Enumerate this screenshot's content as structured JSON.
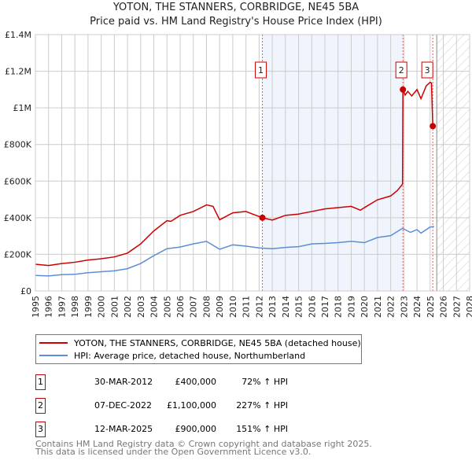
{
  "chart_data": {
    "type": "line",
    "title": "YOTON, THE STANNERS, CORBRIDGE, NE45 5BA",
    "subtitle": "Price paid vs. HM Land Registry's House Price Index (HPI)",
    "xlim": [
      1995,
      2028
    ],
    "ylim": [
      0,
      1400000
    ],
    "yticks": [
      0,
      200000,
      400000,
      600000,
      800000,
      1000000,
      1200000,
      1400000
    ],
    "ytick_labels": [
      "£0",
      "£200K",
      "£400K",
      "£600K",
      "£800K",
      "£1M",
      "£1.2M",
      "£1.4M"
    ],
    "xticks": [
      "1995",
      "1996",
      "1997",
      "1998",
      "1999",
      "2000",
      "2001",
      "2002",
      "2003",
      "2004",
      "2005",
      "2006",
      "2007",
      "2008",
      "2009",
      "2010",
      "2011",
      "2012",
      "2013",
      "2014",
      "2015",
      "2016",
      "2017",
      "2018",
      "2019",
      "2020",
      "2021",
      "2022",
      "2023",
      "2024",
      "2025",
      "2026",
      "2027",
      "2028"
    ],
    "grid": true,
    "shaded_range": [
      2012.25,
      2022.93
    ],
    "forecast_from": 2025.5,
    "colors": {
      "property": "#cc0000",
      "hpi": "#5b8fd4",
      "shade": "#f0f4fc"
    },
    "series": [
      {
        "name": "YOTON, THE STANNERS, CORBRIDGE, NE45 5BA (detached house)",
        "x": [
          1995,
          1996,
          1997,
          1998,
          1999,
          2000,
          2001,
          2002,
          2003,
          2004,
          2005,
          2005.3,
          2006,
          2007,
          2008,
          2008.5,
          2009,
          2010,
          2011,
          2011.5,
          2012.25,
          2013,
          2014,
          2015,
          2016,
          2017,
          2018,
          2019,
          2019.7,
          2020,
          2021,
          2022,
          2022.5,
          2022.9,
          2022.93,
          2023.1,
          2023.3,
          2023.6,
          2024,
          2024.3,
          2024.7,
          2025,
          2025.1,
          2025.2,
          2025.3
        ],
        "y": [
          146000,
          139000,
          150000,
          157000,
          169000,
          176000,
          186000,
          207000,
          257000,
          328000,
          384000,
          380000,
          413000,
          434000,
          470000,
          462000,
          389000,
          427000,
          434000,
          420000,
          400000,
          387000,
          413000,
          420000,
          434000,
          448000,
          455000,
          462000,
          441000,
          455000,
          498000,
          519000,
          548000,
          583000,
          1100000,
          1070000,
          1090000,
          1065000,
          1100000,
          1050000,
          1120000,
          1140000,
          1135000,
          900000,
          890000
        ]
      },
      {
        "name": "HPI: Average price, detached house, Northumberland",
        "x": [
          1995,
          1996,
          1997,
          1998,
          1999,
          2000,
          2001,
          2002,
          2003,
          2004,
          2005,
          2006,
          2007,
          2008,
          2009,
          2010,
          2011,
          2012,
          2013,
          2014,
          2015,
          2016,
          2017,
          2018,
          2019,
          2020,
          2021,
          2022,
          2022.9,
          2023.5,
          2024,
          2024.3,
          2025,
          2025.3
        ],
        "y": [
          85000,
          82000,
          89000,
          91000,
          100000,
          105000,
          110000,
          122000,
          150000,
          193000,
          231000,
          240000,
          257000,
          271000,
          228000,
          252000,
          245000,
          235000,
          231000,
          238000,
          242000,
          257000,
          260000,
          264000,
          271000,
          264000,
          292000,
          302000,
          342000,
          320000,
          335000,
          316000,
          349000,
          352000
        ]
      }
    ],
    "sales": [
      {
        "label": "1",
        "x": 2012.25,
        "y": 400000,
        "date": "30-MAR-2012",
        "price": "£400,000",
        "hpi": "72% ↑ HPI"
      },
      {
        "label": "2",
        "x": 2022.93,
        "y": 1100000,
        "date": "07-DEC-2022",
        "price": "£1,100,000",
        "hpi": "227% ↑ HPI"
      },
      {
        "label": "3",
        "x": 2025.2,
        "y": 900000,
        "date": "12-MAR-2025",
        "price": "£900,000",
        "hpi": "151% ↑ HPI"
      }
    ]
  },
  "footer": [
    "Contains HM Land Registry data © Crown copyright and database right 2025.",
    "This data is licensed under the Open Government Licence v3.0."
  ]
}
